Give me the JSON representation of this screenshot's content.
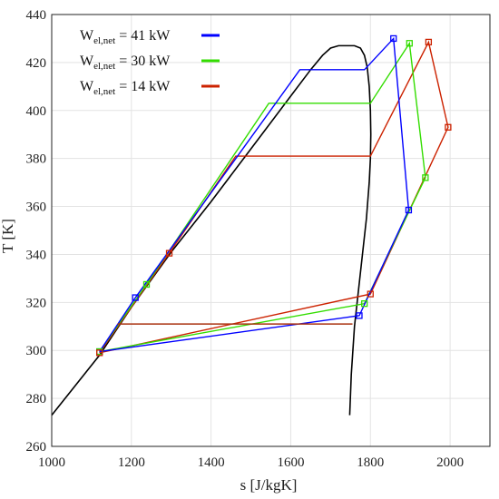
{
  "chart_data": {
    "type": "line",
    "xlabel": "s [J/kgK]",
    "ylabel": "T [K]",
    "xlim": [
      1000,
      2100
    ],
    "ylim": [
      260,
      440
    ],
    "xticks": [
      1000,
      1200,
      1400,
      1600,
      1800,
      2000
    ],
    "yticks": [
      260,
      280,
      300,
      320,
      340,
      360,
      380,
      400,
      420,
      440
    ],
    "grid": true,
    "legend_position": "top-left",
    "saturation_dome": {
      "color": "#000000",
      "x": [
        1000,
        1120,
        1200,
        1300,
        1400,
        1500,
        1600,
        1650,
        1680,
        1700,
        1720,
        1740,
        1760,
        1775,
        1785,
        1792,
        1797,
        1800,
        1801,
        1800,
        1797,
        1790,
        1780,
        1770,
        1760,
        1752,
        1748
      ],
      "y": [
        273,
        298,
        318,
        341,
        362,
        384,
        406,
        417,
        423,
        426,
        427,
        427,
        427,
        426,
        423,
        418,
        410,
        400,
        390,
        380,
        370,
        355,
        340,
        325,
        310,
        290,
        273
      ]
    },
    "series": [
      {
        "name": "W",
        "sub": "el,net",
        "value_text": "= 41 kW",
        "color": "#0000ff",
        "x": [
          1120,
          1210,
          1623,
          1785,
          1858,
          1896,
          1772,
          1120
        ],
        "y": [
          299.5,
          322,
          417,
          417,
          430,
          358.5,
          314.5,
          299.5
        ],
        "marker_x": [
          1120,
          1210,
          1858,
          1896,
          1772
        ],
        "marker_y": [
          299.5,
          322,
          430,
          358.5,
          314.5
        ]
      },
      {
        "name": "W",
        "sub": "el,net",
        "value_text": "= 30 kW",
        "color": "#33dd00",
        "x": [
          1120,
          1238,
          1545,
          1800,
          1898,
          1938,
          1785,
          1120
        ],
        "y": [
          299.5,
          327.5,
          403,
          403,
          428,
          372,
          319.5,
          299.5
        ],
        "marker_x": [
          1120,
          1238,
          1898,
          1938,
          1785
        ],
        "marker_y": [
          299.5,
          327.5,
          428,
          372,
          319.5
        ]
      },
      {
        "name": "W",
        "sub": "el,net",
        "value_text": "= 14 kW",
        "color": "#cc2200",
        "x": [
          1120,
          1295,
          1462,
          1800,
          1946,
          1995,
          1800,
          1120
        ],
        "y": [
          299,
          340.5,
          381,
          381,
          428.5,
          393,
          323.5,
          299
        ],
        "marker_x": [
          1120,
          1295,
          1946,
          1995,
          1800
        ],
        "marker_y": [
          299,
          340.5,
          428.5,
          393,
          323.5
        ]
      }
    ],
    "condenser_line": {
      "color": "#aa3311",
      "x": [
        1165,
        1755
      ],
      "y": [
        311,
        311
      ]
    }
  }
}
